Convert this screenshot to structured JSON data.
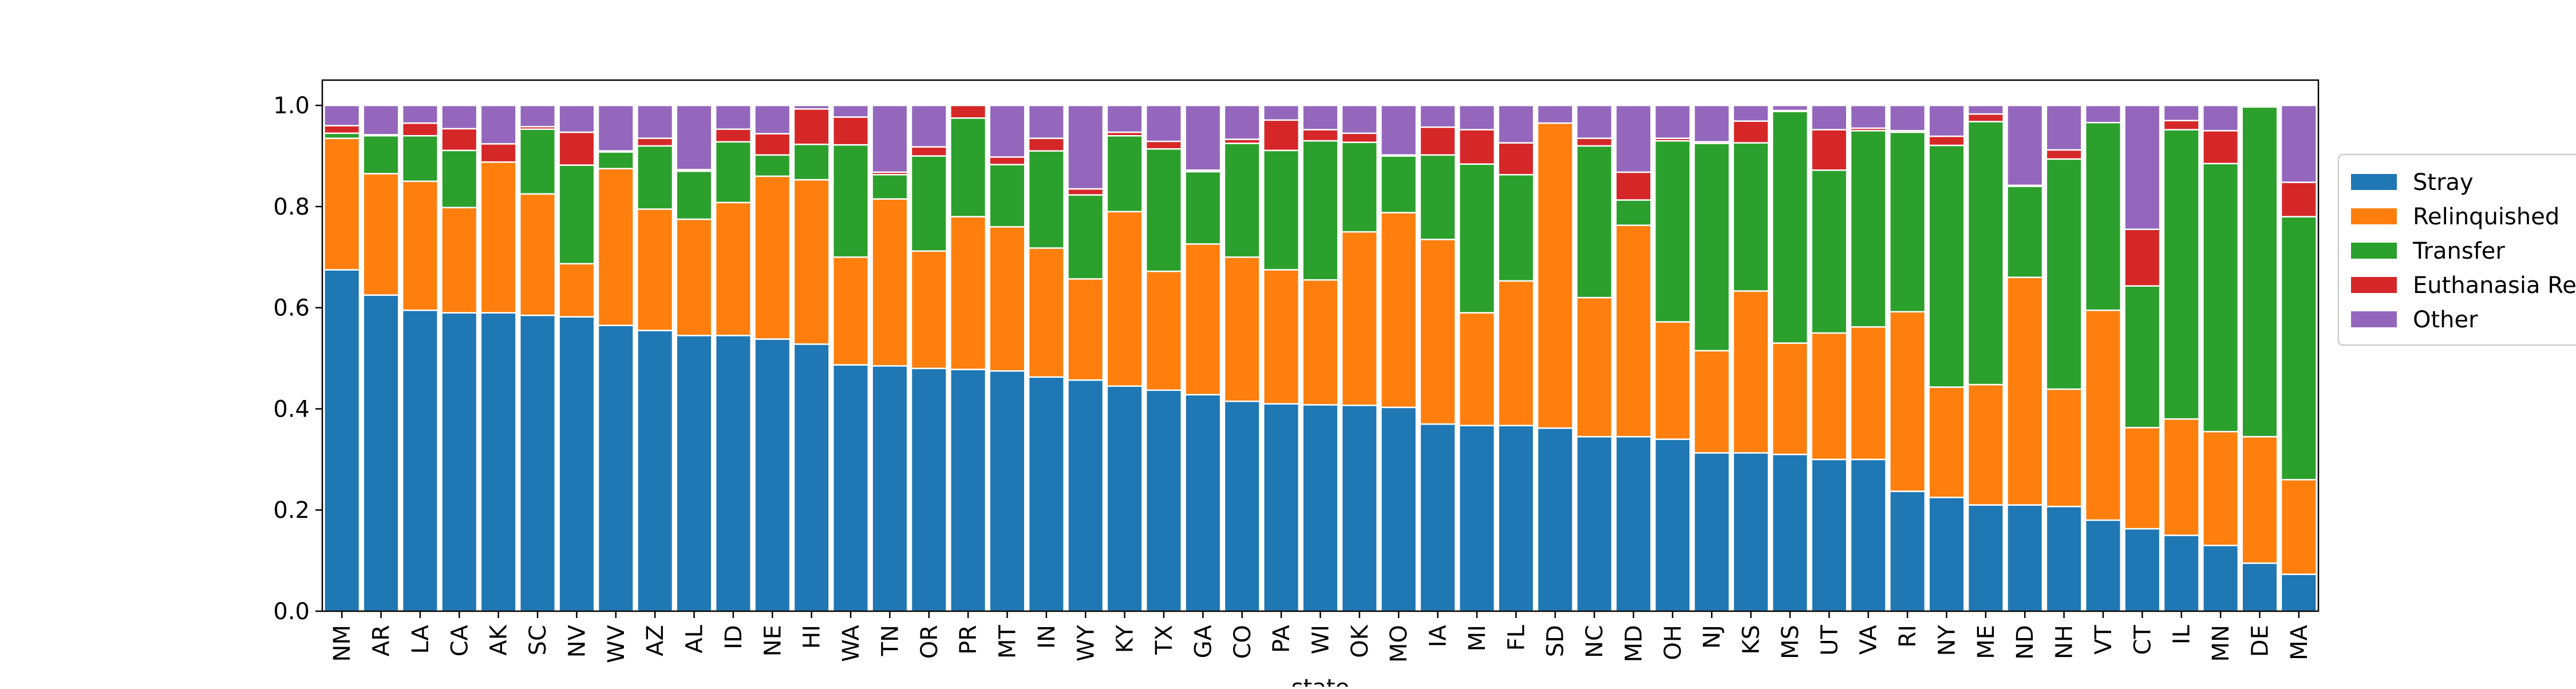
{
  "chart_data": {
    "type": "bar",
    "stacked": true,
    "title": "",
    "xlabel": "state",
    "ylabel": "",
    "ylim": [
      0,
      1.05
    ],
    "yticks": [
      0.0,
      0.2,
      0.4,
      0.6,
      0.8,
      1.0
    ],
    "ytick_labels": [
      "0.0",
      "0.2",
      "0.4",
      "0.6",
      "0.8",
      "1.0"
    ],
    "grid": false,
    "legend_position": "right, outside plot",
    "categories": [
      "NM",
      "AR",
      "LA",
      "CA",
      "AK",
      "SC",
      "NV",
      "WV",
      "AZ",
      "AL",
      "ID",
      "NE",
      "HI",
      "WA",
      "TN",
      "OR",
      "PR",
      "MT",
      "IN",
      "WY",
      "KY",
      "TX",
      "GA",
      "CO",
      "PA",
      "WI",
      "OK",
      "MO",
      "IA",
      "MI",
      "FL",
      "SD",
      "NC",
      "MD",
      "OH",
      "NJ",
      "KS",
      "MS",
      "UT",
      "VA",
      "RI",
      "NY",
      "ME",
      "ND",
      "NH",
      "VT",
      "CT",
      "IL",
      "MN",
      "DE",
      "MA"
    ],
    "series": [
      {
        "name": "Stray",
        "color": "#1f77b4",
        "values": [
          0.675,
          0.625,
          0.595,
          0.59,
          0.59,
          0.585,
          0.582,
          0.565,
          0.555,
          0.545,
          0.545,
          0.538,
          0.528,
          0.487,
          0.485,
          0.48,
          0.478,
          0.475,
          0.463,
          0.457,
          0.445,
          0.437,
          0.428,
          0.415,
          0.41,
          0.408,
          0.407,
          0.403,
          0.37,
          0.367,
          0.367,
          0.362,
          0.345,
          0.345,
          0.34,
          0.313,
          0.313,
          0.31,
          0.3,
          0.3,
          0.237,
          0.225,
          0.21,
          0.21,
          0.207,
          0.18,
          0.163,
          0.15,
          0.13,
          0.095,
          0.073
        ]
      },
      {
        "name": "Relinquished",
        "color": "#ff7f0e",
        "values": [
          0.26,
          0.24,
          0.255,
          0.208,
          0.298,
          0.24,
          0.105,
          0.31,
          0.24,
          0.23,
          0.263,
          0.322,
          0.325,
          0.213,
          0.33,
          0.232,
          0.302,
          0.285,
          0.255,
          0.2,
          0.345,
          0.235,
          0.298,
          0.285,
          0.265,
          0.247,
          0.343,
          0.385,
          0.365,
          0.223,
          0.286,
          0.603,
          0.275,
          0.418,
          0.232,
          0.202,
          0.32,
          0.22,
          0.25,
          0.262,
          0.355,
          0.218,
          0.238,
          0.45,
          0.232,
          0.415,
          0.2,
          0.23,
          0.225,
          0.25,
          0.187
        ]
      },
      {
        "name": "Transfer",
        "color": "#2ca02c",
        "values": [
          0.01,
          0.075,
          0.09,
          0.113,
          0.0,
          0.128,
          0.195,
          0.033,
          0.125,
          0.095,
          0.12,
          0.042,
          0.07,
          0.222,
          0.048,
          0.188,
          0.195,
          0.123,
          0.192,
          0.166,
          0.15,
          0.242,
          0.143,
          0.225,
          0.236,
          0.275,
          0.177,
          0.112,
          0.167,
          0.294,
          0.21,
          0.0,
          0.3,
          0.05,
          0.358,
          0.41,
          0.293,
          0.458,
          0.322,
          0.388,
          0.355,
          0.478,
          0.52,
          0.18,
          0.455,
          0.371,
          0.28,
          0.572,
          0.53,
          0.652,
          0.52
        ]
      },
      {
        "name": "Euthanasia Requested",
        "color": "#d62728",
        "values": [
          0.015,
          0.002,
          0.025,
          0.043,
          0.036,
          0.005,
          0.065,
          0.002,
          0.015,
          0.003,
          0.025,
          0.042,
          0.07,
          0.055,
          0.005,
          0.018,
          0.025,
          0.015,
          0.025,
          0.012,
          0.007,
          0.015,
          0.003,
          0.008,
          0.06,
          0.022,
          0.018,
          0.002,
          0.055,
          0.068,
          0.063,
          0.0,
          0.015,
          0.055,
          0.005,
          0.003,
          0.043,
          0.002,
          0.08,
          0.005,
          0.003,
          0.018,
          0.015,
          0.002,
          0.018,
          0.0,
          0.112,
          0.018,
          0.065,
          0.0,
          0.068
        ]
      },
      {
        "name": "Other",
        "color": "#9467bd",
        "values": [
          0.04,
          0.058,
          0.035,
          0.046,
          0.076,
          0.042,
          0.053,
          0.09,
          0.065,
          0.127,
          0.047,
          0.056,
          0.007,
          0.023,
          0.132,
          0.082,
          0.0,
          0.102,
          0.065,
          0.165,
          0.053,
          0.071,
          0.128,
          0.067,
          0.029,
          0.048,
          0.055,
          0.098,
          0.043,
          0.048,
          0.074,
          0.035,
          0.065,
          0.132,
          0.065,
          0.072,
          0.031,
          0.01,
          0.048,
          0.045,
          0.05,
          0.061,
          0.017,
          0.158,
          0.088,
          0.034,
          0.245,
          0.03,
          0.05,
          0.003,
          0.152
        ]
      }
    ]
  }
}
